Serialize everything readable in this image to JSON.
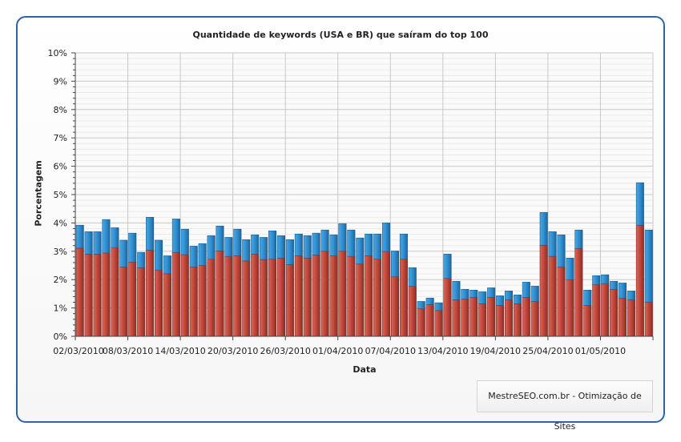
{
  "chart_data": {
    "type": "bar",
    "stacked": true,
    "title": "Quantidade de keywords (USA e BR) que saíram do top 100",
    "xlabel": "Data",
    "ylabel": "Porcentagem",
    "ylim": [
      0,
      10
    ],
    "y_ticks": [
      "0%",
      "1%",
      "2%",
      "3%",
      "4%",
      "5%",
      "6%",
      "7%",
      "8%",
      "9%",
      "10%"
    ],
    "x_tick_labels": [
      "02/03/2010",
      "08/03/2010",
      "14/03/2010",
      "20/03/2010",
      "26/03/2010",
      "01/04/2010",
      "07/04/2010",
      "13/04/2010",
      "19/04/2010",
      "25/04/2010",
      "01/05/2010"
    ],
    "x_tick_every_bars": 6,
    "grid": true,
    "series": [
      {
        "color": "#c0463a",
        "values": [
          3.11,
          2.9,
          2.9,
          2.94,
          3.13,
          2.45,
          2.62,
          2.42,
          3.04,
          2.34,
          2.21,
          2.96,
          2.88,
          2.45,
          2.5,
          2.72,
          3.01,
          2.82,
          2.84,
          2.66,
          2.9,
          2.71,
          2.72,
          2.76,
          2.53,
          2.84,
          2.76,
          2.87,
          3.0,
          2.84,
          3.0,
          2.82,
          2.55,
          2.84,
          2.72,
          2.99,
          2.1,
          2.72,
          1.76,
          0.97,
          1.12,
          0.91,
          2.04,
          1.29,
          1.32,
          1.37,
          1.15,
          1.37,
          1.09,
          1.29,
          1.15,
          1.37,
          1.23,
          3.21,
          2.82,
          2.45,
          2.0,
          3.1,
          1.09,
          1.83,
          1.86,
          1.66,
          1.35,
          1.29,
          3.92,
          1.21
        ]
      },
      {
        "color": "#2f8fd1",
        "values": [
          0.81,
          0.79,
          0.79,
          1.18,
          0.7,
          0.94,
          1.02,
          0.54,
          1.16,
          1.05,
          0.63,
          1.18,
          0.9,
          0.73,
          0.77,
          0.83,
          0.88,
          0.67,
          0.94,
          0.75,
          0.68,
          0.78,
          1.0,
          0.79,
          0.88,
          0.77,
          0.79,
          0.77,
          0.75,
          0.74,
          0.97,
          0.93,
          0.92,
          0.77,
          0.89,
          1.01,
          0.91,
          0.89,
          0.66,
          0.26,
          0.23,
          0.27,
          0.86,
          0.65,
          0.34,
          0.26,
          0.42,
          0.34,
          0.34,
          0.31,
          0.31,
          0.54,
          0.54,
          1.16,
          0.87,
          1.13,
          0.76,
          0.65,
          0.54,
          0.31,
          0.31,
          0.28,
          0.53,
          0.31,
          1.5,
          2.54
        ]
      }
    ]
  },
  "footer": {
    "credit": "MestreSEO.com.br - Otimização de Sites"
  }
}
